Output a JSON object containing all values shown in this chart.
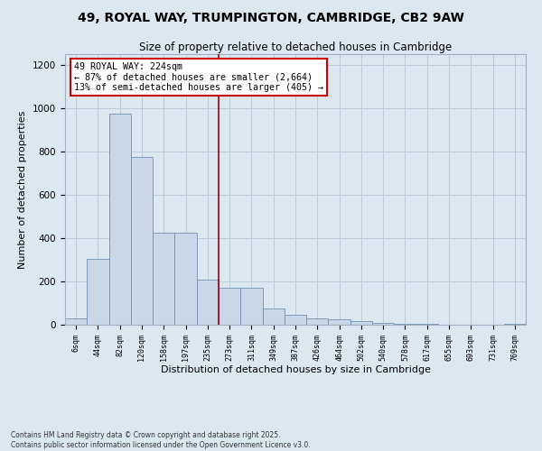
{
  "title1": "49, ROYAL WAY, TRUMPINGTON, CAMBRIDGE, CB2 9AW",
  "title2": "Size of property relative to detached houses in Cambridge",
  "xlabel": "Distribution of detached houses by size in Cambridge",
  "ylabel": "Number of detached properties",
  "categories": [
    "6sqm",
    "44sqm",
    "82sqm",
    "120sqm",
    "158sqm",
    "197sqm",
    "235sqm",
    "273sqm",
    "311sqm",
    "349sqm",
    "387sqm",
    "426sqm",
    "464sqm",
    "502sqm",
    "540sqm",
    "578sqm",
    "617sqm",
    "655sqm",
    "693sqm",
    "731sqm",
    "769sqm"
  ],
  "values": [
    30,
    305,
    975,
    775,
    425,
    425,
    210,
    170,
    170,
    75,
    45,
    30,
    25,
    15,
    10,
    5,
    5,
    2,
    1,
    0,
    5
  ],
  "bar_color": "#c8d8e8",
  "bar_edge_color": "#7090b0",
  "vline_color": "#a00000",
  "annotation_text": "49 ROYAL WAY: 224sqm\n← 87% of detached houses are smaller (2,664)\n13% of semi-detached houses are larger (405) →",
  "annotation_box_color": "#ffffff",
  "annotation_box_edge": "#cc0000",
  "ylim": [
    0,
    1250
  ],
  "yticks": [
    0,
    200,
    400,
    600,
    800,
    1000,
    1200
  ],
  "grid_color": "#b8cdd8",
  "bg_color": "#dce8f0",
  "footer1": "Contains HM Land Registry data © Crown copyright and database right 2025.",
  "footer2": "Contains public sector information licensed under the Open Government Licence v3.0.",
  "vline_pos": 6.5
}
